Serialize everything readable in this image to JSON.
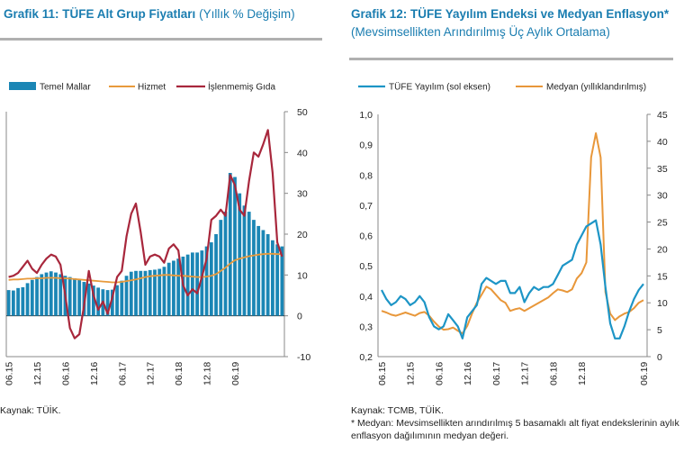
{
  "chart_data": [
    {
      "type": "bar",
      "title_bold": "Grafik 11: TÜFE Alt Grup Fiyatları",
      "title_sub": "(Yıllık % Değişim)",
      "x_ticks": [
        "06.15",
        "12.15",
        "06.16",
        "12.16",
        "06.17",
        "12.17",
        "06.18",
        "12.18",
        "06.19"
      ],
      "yright_ticks": [
        "50",
        "40",
        "30",
        "20",
        "10",
        "0",
        "-10"
      ],
      "ylim": [
        -10,
        50
      ],
      "legend": [
        "Temel Mallar",
        "Hizmet",
        "İşlenmemiş Gıda"
      ],
      "series": [
        {
          "name": "Temel Mallar",
          "style": "bar",
          "color": "#1b86b5",
          "values": [
            6.3,
            6.2,
            6.8,
            7.0,
            8.0,
            8.8,
            9.5,
            10.2,
            10.6,
            10.9,
            10.6,
            10.2,
            9.8,
            9.5,
            9.2,
            8.8,
            8.3,
            7.9,
            7.4,
            6.9,
            6.5,
            6.3,
            6.4,
            7.5,
            8.6,
            9.8,
            10.8,
            11.0,
            11.0,
            11.0,
            11.2,
            11.3,
            11.5,
            12.0,
            13.0,
            13.5,
            14.0,
            14.5,
            15.0,
            15.5,
            15.5,
            16.0,
            17.0,
            18.0,
            20.0,
            23.5,
            25.5,
            35.0,
            34.0,
            30.0,
            27.0,
            25.5,
            23.5,
            22.0,
            21.0,
            20.0,
            18.5,
            17.5,
            17.0
          ]
        },
        {
          "name": "Hizmet",
          "style": "line",
          "color": "#e89a3c",
          "values": [
            8.8,
            8.9,
            8.9,
            9.0,
            9.1,
            9.1,
            9.2,
            9.2,
            9.3,
            9.3,
            9.3,
            9.2,
            9.2,
            9.1,
            9.0,
            8.9,
            8.8,
            8.7,
            8.6,
            8.5,
            8.4,
            8.3,
            8.2,
            8.2,
            8.3,
            8.5,
            8.7,
            8.9,
            9.2,
            9.5,
            9.7,
            9.8,
            9.9,
            10.0,
            10.0,
            9.9,
            9.8,
            9.8,
            9.7,
            9.6,
            9.5,
            9.5,
            9.6,
            9.8,
            10.2,
            11.0,
            11.8,
            12.8,
            13.6,
            14.0,
            14.3,
            14.6,
            14.8,
            15.0,
            15.1,
            15.2,
            15.2,
            15.1,
            15.1
          ]
        },
        {
          "name": "İşlenmemiş Gıda",
          "style": "line",
          "color": "#a8273c",
          "values": [
            9.5,
            9.8,
            10.5,
            12.0,
            13.5,
            11.5,
            10.5,
            12.5,
            14.0,
            15.0,
            14.5,
            12.5,
            5.0,
            -3.0,
            -5.5,
            -4.5,
            2.5,
            11.0,
            5.0,
            1.5,
            3.5,
            0.5,
            4.5,
            9.5,
            11.0,
            19.5,
            25.0,
            27.5,
            20.5,
            12.5,
            14.5,
            15.0,
            14.5,
            13.0,
            16.5,
            17.5,
            16.0,
            7.5,
            5.0,
            6.5,
            5.5,
            9.5,
            14.0,
            23.5,
            24.5,
            26.0,
            24.5,
            34.5,
            32.0,
            26.0,
            24.5,
            33.0,
            40.0,
            39.0,
            42.0,
            45.5,
            35.0,
            18.0,
            14.5
          ]
        }
      ]
    },
    {
      "type": "line",
      "title_bold": "Grafik 12: TÜFE Yayılım Endeksi ve Medyan Enflasyon*",
      "title_sub": "(Mevsimsellikten Arındırılmış Üç Aylık Ortalama)",
      "x_ticks": [
        "06.15",
        "12.15",
        "06.16",
        "12.16",
        "06.17",
        "12.17",
        "06.18",
        "12.18",
        "06.19"
      ],
      "yleft_ticks": [
        "1,0",
        "0,9",
        "0,8",
        "0,7",
        "0,6",
        "0,5",
        "0,4",
        "0,3",
        "0,2"
      ],
      "yright_ticks": [
        "45",
        "40",
        "35",
        "30",
        "25",
        "20",
        "15",
        "10",
        "5",
        "0"
      ],
      "ylim_left": [
        0.2,
        1.0
      ],
      "ylim_right": [
        0,
        45
      ],
      "legend": [
        "TÜFE Yayılım (sol eksen)",
        "Medyan (yıllıklandırılmış)"
      ],
      "series": [
        {
          "name": "TÜFE Yayılım (sol eksen)",
          "axis": "left",
          "color": "#1d95c6",
          "values": [
            0.42,
            0.39,
            0.37,
            0.38,
            0.4,
            0.39,
            0.37,
            0.38,
            0.4,
            0.38,
            0.33,
            0.3,
            0.29,
            0.3,
            0.34,
            0.32,
            0.3,
            0.26,
            0.33,
            0.35,
            0.37,
            0.44,
            0.46,
            0.45,
            0.44,
            0.45,
            0.45,
            0.41,
            0.41,
            0.43,
            0.38,
            0.41,
            0.43,
            0.42,
            0.43,
            0.43,
            0.44,
            0.47,
            0.5,
            0.51,
            0.52,
            0.57,
            0.6,
            0.63,
            0.64,
            0.65,
            0.57,
            0.43,
            0.31,
            0.26,
            0.26,
            0.3,
            0.35,
            0.39,
            0.42,
            0.44
          ]
        },
        {
          "name": "Medyan (yıllıklandırılmış)",
          "axis": "right",
          "color": "#e8973a",
          "values": [
            8.5,
            8.2,
            7.8,
            7.6,
            7.9,
            8.2,
            7.9,
            7.6,
            8.1,
            8.3,
            7.6,
            6.5,
            5.6,
            5.0,
            5.1,
            5.4,
            4.8,
            4.3,
            5.7,
            8.0,
            10.0,
            11.5,
            13.0,
            12.5,
            11.5,
            10.5,
            10.0,
            8.5,
            8.8,
            9.0,
            8.5,
            9.0,
            9.5,
            10.0,
            10.5,
            11.0,
            11.8,
            12.5,
            12.3,
            12.0,
            12.5,
            14.5,
            15.5,
            17.5,
            37.0,
            41.5,
            37.0,
            12.0,
            8.0,
            6.8,
            7.5,
            8.0,
            8.3,
            9.0,
            10.0,
            10.5
          ]
        }
      ]
    }
  ],
  "left_panel": {
    "source": "Kaynak: TÜİK."
  },
  "right_panel": {
    "source": "Kaynak: TCMB, TÜİK.",
    "footnote": "* Medyan: Mevsimsellikten arındırılmış 5 basamaklı alt fiyat endekslerinin aylık enflasyon dağılımının medyan değeri."
  }
}
